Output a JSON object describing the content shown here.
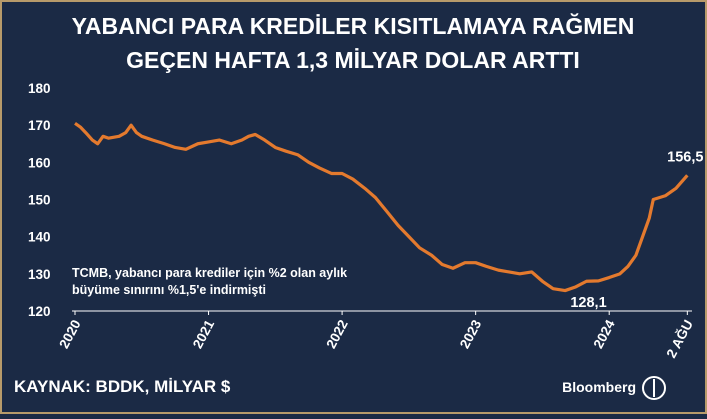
{
  "chart_data": {
    "type": "line",
    "title": [
      "YABANCI PARA KREDİLER KISITLAMAYA RAĞMEN",
      "GEÇEN HAFTA 1,3 MİLYAR DOLAR ARTTI"
    ],
    "source": "KAYNAK: BDDK, MİLYAR $",
    "brand": "Bloomberg",
    "note": [
      "TCMB, yabancı para krediler için %2 olan aylık",
      "büyüme sınırını %1,5'e indirmişti"
    ],
    "x": [
      2020.0,
      2020.04,
      2020.08,
      2020.13,
      2020.17,
      2020.21,
      2020.25,
      2020.33,
      2020.38,
      2020.42,
      2020.46,
      2020.5,
      2020.58,
      2020.67,
      2020.75,
      2020.83,
      2020.92,
      2021.0,
      2021.08,
      2021.17,
      2021.25,
      2021.3,
      2021.35,
      2021.42,
      2021.5,
      2021.58,
      2021.67,
      2021.75,
      2021.83,
      2021.92,
      2022.0,
      2022.08,
      2022.17,
      2022.25,
      2022.33,
      2022.42,
      2022.5,
      2022.58,
      2022.67,
      2022.75,
      2022.83,
      2022.92,
      2023.0,
      2023.08,
      2023.17,
      2023.25,
      2023.33,
      2023.42,
      2023.5,
      2023.58,
      2023.67,
      2023.75,
      2023.83,
      2023.92,
      2024.0,
      2024.08,
      2024.14,
      2024.2,
      2024.25,
      2024.3,
      2024.33,
      2024.42,
      2024.5,
      2024.585
    ],
    "series": [
      {
        "name": "Yabancı para krediler",
        "color": "#e47a2e",
        "values": [
          170.5,
          169.5,
          168,
          166,
          165,
          167,
          166.5,
          167,
          168,
          170,
          168,
          167,
          166,
          165,
          164,
          163.5,
          165,
          165.5,
          166,
          165,
          166,
          167,
          167.5,
          166,
          164,
          163,
          162,
          160,
          158.5,
          157,
          157,
          155.5,
          153,
          150.5,
          147,
          143,
          140,
          137,
          135,
          132.5,
          131.5,
          133,
          133,
          132,
          131,
          130.5,
          130,
          130.5,
          128,
          126,
          125.5,
          126.5,
          128,
          128.1,
          129,
          130,
          132,
          135,
          140,
          145,
          150,
          151,
          153,
          156.5
        ]
      }
    ],
    "annotations": [
      {
        "x": 2023.92,
        "y": 128.1,
        "label": "128,1"
      },
      {
        "x": 2024.585,
        "y": 156.5,
        "label": "156,5"
      }
    ],
    "xlim": [
      2020.0,
      2024.62
    ],
    "xticks": [
      2020,
      2021,
      2022,
      2023,
      2024,
      {
        "value": 2024.585,
        "label": "2 AĞU"
      }
    ],
    "ylim": [
      120,
      180
    ],
    "yticks": [
      120,
      130,
      140,
      150,
      160,
      170,
      180
    ],
    "grid": false
  }
}
